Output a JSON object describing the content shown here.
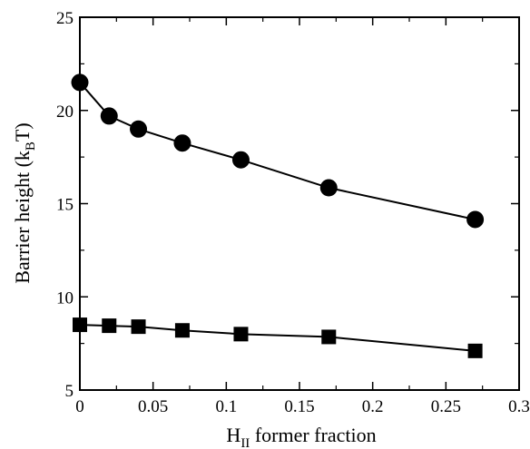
{
  "chart_data": {
    "type": "line",
    "xlabel": {
      "main": "H",
      "sub": "II",
      "rest": " former fraction"
    },
    "ylabel": {
      "main": "Barrier height (k",
      "sub": "B",
      "rest": "T)"
    },
    "xlim": [
      0,
      0.3
    ],
    "ylim": [
      5,
      25
    ],
    "xticks": [
      0,
      0.05,
      0.1,
      0.15,
      0.2,
      0.25,
      0.3
    ],
    "xtick_labels": [
      "0",
      "0.05",
      "0.1",
      "0.15",
      "0.2",
      "0.25",
      "0.3"
    ],
    "yticks": [
      5,
      10,
      15,
      20,
      25
    ],
    "ytick_labels": [
      "5",
      "10",
      "15",
      "20",
      "25"
    ],
    "grid": false,
    "series": [
      {
        "marker": "circle",
        "color": "#000000",
        "x": [
          0,
          0.02,
          0.04,
          0.07,
          0.11,
          0.17,
          0.27
        ],
        "y": [
          21.5,
          19.7,
          19.0,
          18.25,
          17.35,
          15.85,
          14.15
        ]
      },
      {
        "marker": "square",
        "color": "#000000",
        "x": [
          0,
          0.02,
          0.04,
          0.07,
          0.11,
          0.17,
          0.27
        ],
        "y": [
          8.5,
          8.45,
          8.4,
          8.2,
          8.0,
          7.85,
          7.1
        ]
      }
    ]
  }
}
